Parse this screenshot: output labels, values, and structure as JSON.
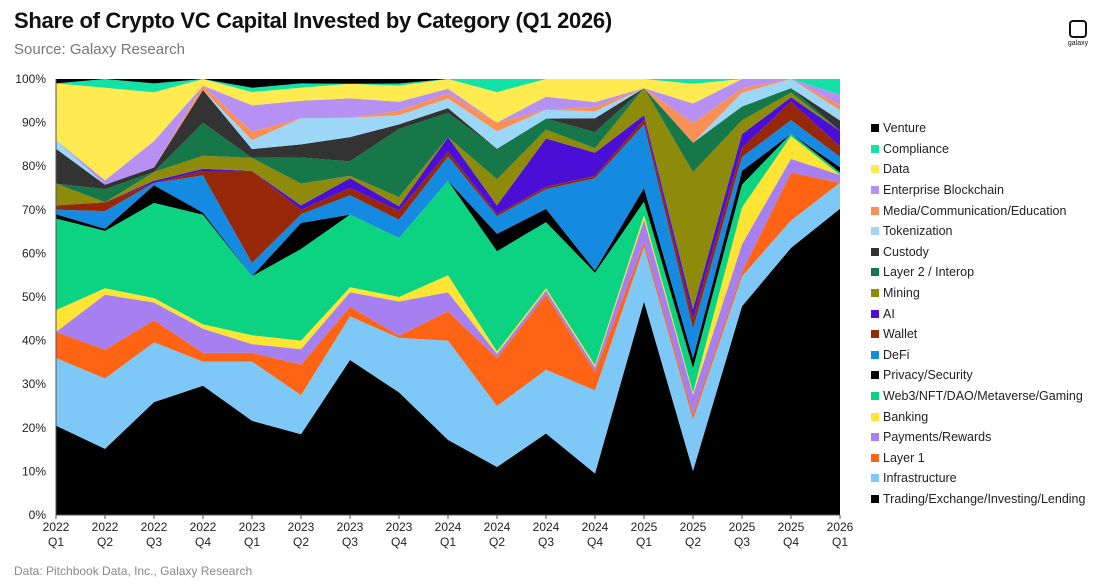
{
  "header": {
    "title": "Share of Crypto VC Capital Invested by Category (Q1 2026)",
    "subtitle": "Source: Galaxy Research",
    "logo_text": "galaxy",
    "footnote": "Data: Pitchbook Data, Inc., Galaxy Research"
  },
  "chart_data": {
    "type": "area",
    "stacked": true,
    "normalized": true,
    "categories": [
      [
        "2022",
        "Q1"
      ],
      [
        "2022",
        "Q2"
      ],
      [
        "2022",
        "Q3"
      ],
      [
        "2022",
        "Q4"
      ],
      [
        "2023",
        "Q1"
      ],
      [
        "2023",
        "Q2"
      ],
      [
        "2023",
        "Q3"
      ],
      [
        "2023",
        "Q4"
      ],
      [
        "2024",
        "Q1"
      ],
      [
        "2024",
        "Q2"
      ],
      [
        "2024",
        "Q3"
      ],
      [
        "2024",
        "Q4"
      ],
      [
        "2025",
        "Q1"
      ],
      [
        "2025",
        "Q2"
      ],
      [
        "2025",
        "Q3"
      ],
      [
        "2025",
        "Q4"
      ],
      [
        "2026",
        "Q1"
      ]
    ],
    "y_ticks": [
      "0%",
      "10%",
      "20%",
      "30%",
      "40%",
      "50%",
      "60%",
      "70%",
      "80%",
      "90%",
      "100%"
    ],
    "ylim": [
      0,
      100
    ],
    "grid": false,
    "legend_position": "right",
    "series": [
      {
        "name": "Trading/Exchange/Investing/Lending",
        "color": "#000000",
        "values": [
          20.5,
          15,
          25.5,
          29.5,
          21.5,
          18.5,
          32,
          27,
          15.5,
          11,
          18.5,
          9,
          47,
          9,
          45.5,
          58.5,
          59
        ]
      },
      {
        "name": "Infrastructure",
        "color": "#7DC8F7",
        "values": [
          15.5,
          16,
          13.5,
          5.5,
          13.5,
          9,
          9,
          12,
          20.5,
          14,
          14.5,
          18,
          12,
          10.5,
          6.5,
          6,
          5
        ]
      },
      {
        "name": "Layer 1",
        "color": "#FF6314",
        "values": [
          6,
          6.5,
          5,
          2,
          2,
          7,
          2,
          0.5,
          6,
          11,
          17,
          4,
          1,
          1,
          1,
          10.5,
          0
        ]
      },
      {
        "name": "Payments/Rewards",
        "color": "#A67FF0",
        "values": [
          0,
          12.5,
          4,
          5.5,
          2,
          3.5,
          3,
          7.5,
          4,
          1,
          1,
          1,
          5,
          4,
          6,
          3,
          1.5
        ]
      },
      {
        "name": "Banking",
        "color": "#FFE433",
        "values": [
          5,
          1.5,
          1,
          1,
          2,
          2,
          1,
          1,
          3.5,
          0.5,
          0.5,
          0.5,
          1,
          0.5,
          8,
          5,
          0
        ]
      },
      {
        "name": "Web3/NFT/DAO/Metaverse/Gaming",
        "color": "#0BD381",
        "values": [
          21,
          13,
          21.5,
          25,
          13.5,
          21,
          15,
          13,
          19.5,
          23,
          15,
          20,
          3,
          5,
          5,
          0.5,
          0.5
        ]
      },
      {
        "name": "Privacy/Security",
        "color": "#000000",
        "values": [
          1,
          0.5,
          4,
          0.5,
          0,
          6,
          0,
          0,
          0,
          4,
          3,
          0.5,
          3,
          2,
          3,
          0,
          1
        ]
      },
      {
        "name": "DeFi",
        "color": "#148AE0",
        "values": [
          1,
          4,
          0.5,
          8.5,
          3,
          2,
          4,
          4,
          5,
          4,
          4.5,
          20,
          14,
          6,
          3,
          3,
          2
        ]
      },
      {
        "name": "Wallet",
        "color": "#962808",
        "values": [
          1,
          2,
          0,
          1,
          21,
          1,
          1.5,
          2,
          1,
          0.5,
          0.5,
          0.5,
          1,
          2,
          2,
          4,
          2
        ]
      },
      {
        "name": "AI",
        "color": "#4A0ED6",
        "values": [
          0,
          0,
          0.5,
          0.5,
          0,
          1,
          2,
          1,
          3,
          2,
          11,
          5,
          1,
          2,
          3,
          1,
          3
        ]
      },
      {
        "name": "Mining",
        "color": "#8E8A0A",
        "values": [
          5,
          0,
          2,
          3,
          3,
          5,
          0.5,
          2,
          0,
          6,
          2,
          1,
          6,
          28,
          3,
          1,
          0
        ]
      },
      {
        "name": "Layer 2 / Interop",
        "color": "#167848",
        "values": [
          0,
          3,
          0,
          7.5,
          0,
          6,
          3,
          15,
          5,
          7,
          2.5,
          3.5,
          0,
          6,
          3,
          1,
          0
        ]
      },
      {
        "name": "Custody",
        "color": "#333333",
        "values": [
          8,
          1,
          1,
          7.5,
          2,
          3,
          5,
          1,
          1,
          0,
          0,
          3,
          0,
          0,
          0,
          0,
          2
        ]
      },
      {
        "name": "Tokenization",
        "color": "#9DD7F8",
        "values": [
          2,
          0,
          0,
          0,
          2,
          6,
          4,
          2,
          2,
          4,
          2,
          1.5,
          0,
          0,
          3,
          2,
          2
        ]
      },
      {
        "name": "Media/Communication/Education",
        "color": "#FB9057",
        "values": [
          0,
          0,
          0,
          1,
          2,
          0,
          0,
          1,
          1,
          2,
          0,
          1,
          0,
          4,
          1,
          0,
          1
        ]
      },
      {
        "name": "Enterprise Blockchain",
        "color": "#B691F3",
        "values": [
          0,
          1,
          6,
          0,
          6,
          4,
          4,
          2,
          1,
          0,
          3,
          1,
          0,
          4,
          2,
          0,
          2
        ]
      },
      {
        "name": "Data",
        "color": "#FFEA4F",
        "values": [
          13,
          21,
          11,
          1.5,
          3,
          3,
          3,
          3.5,
          2,
          7,
          4,
          5,
          2,
          4,
          0,
          0,
          0
        ]
      },
      {
        "name": "Compliance",
        "color": "#12E2A6",
        "values": [
          0,
          2,
          2,
          0,
          1,
          1,
          0,
          0.5,
          0,
          3,
          0,
          0,
          0,
          1,
          0,
          0,
          3
        ]
      },
      {
        "name": "Venture",
        "color": "#000000",
        "values": [
          1,
          0,
          1,
          0,
          2,
          1,
          1,
          1,
          0,
          0,
          0,
          0,
          0,
          0,
          0,
          0,
          0
        ]
      }
    ]
  }
}
